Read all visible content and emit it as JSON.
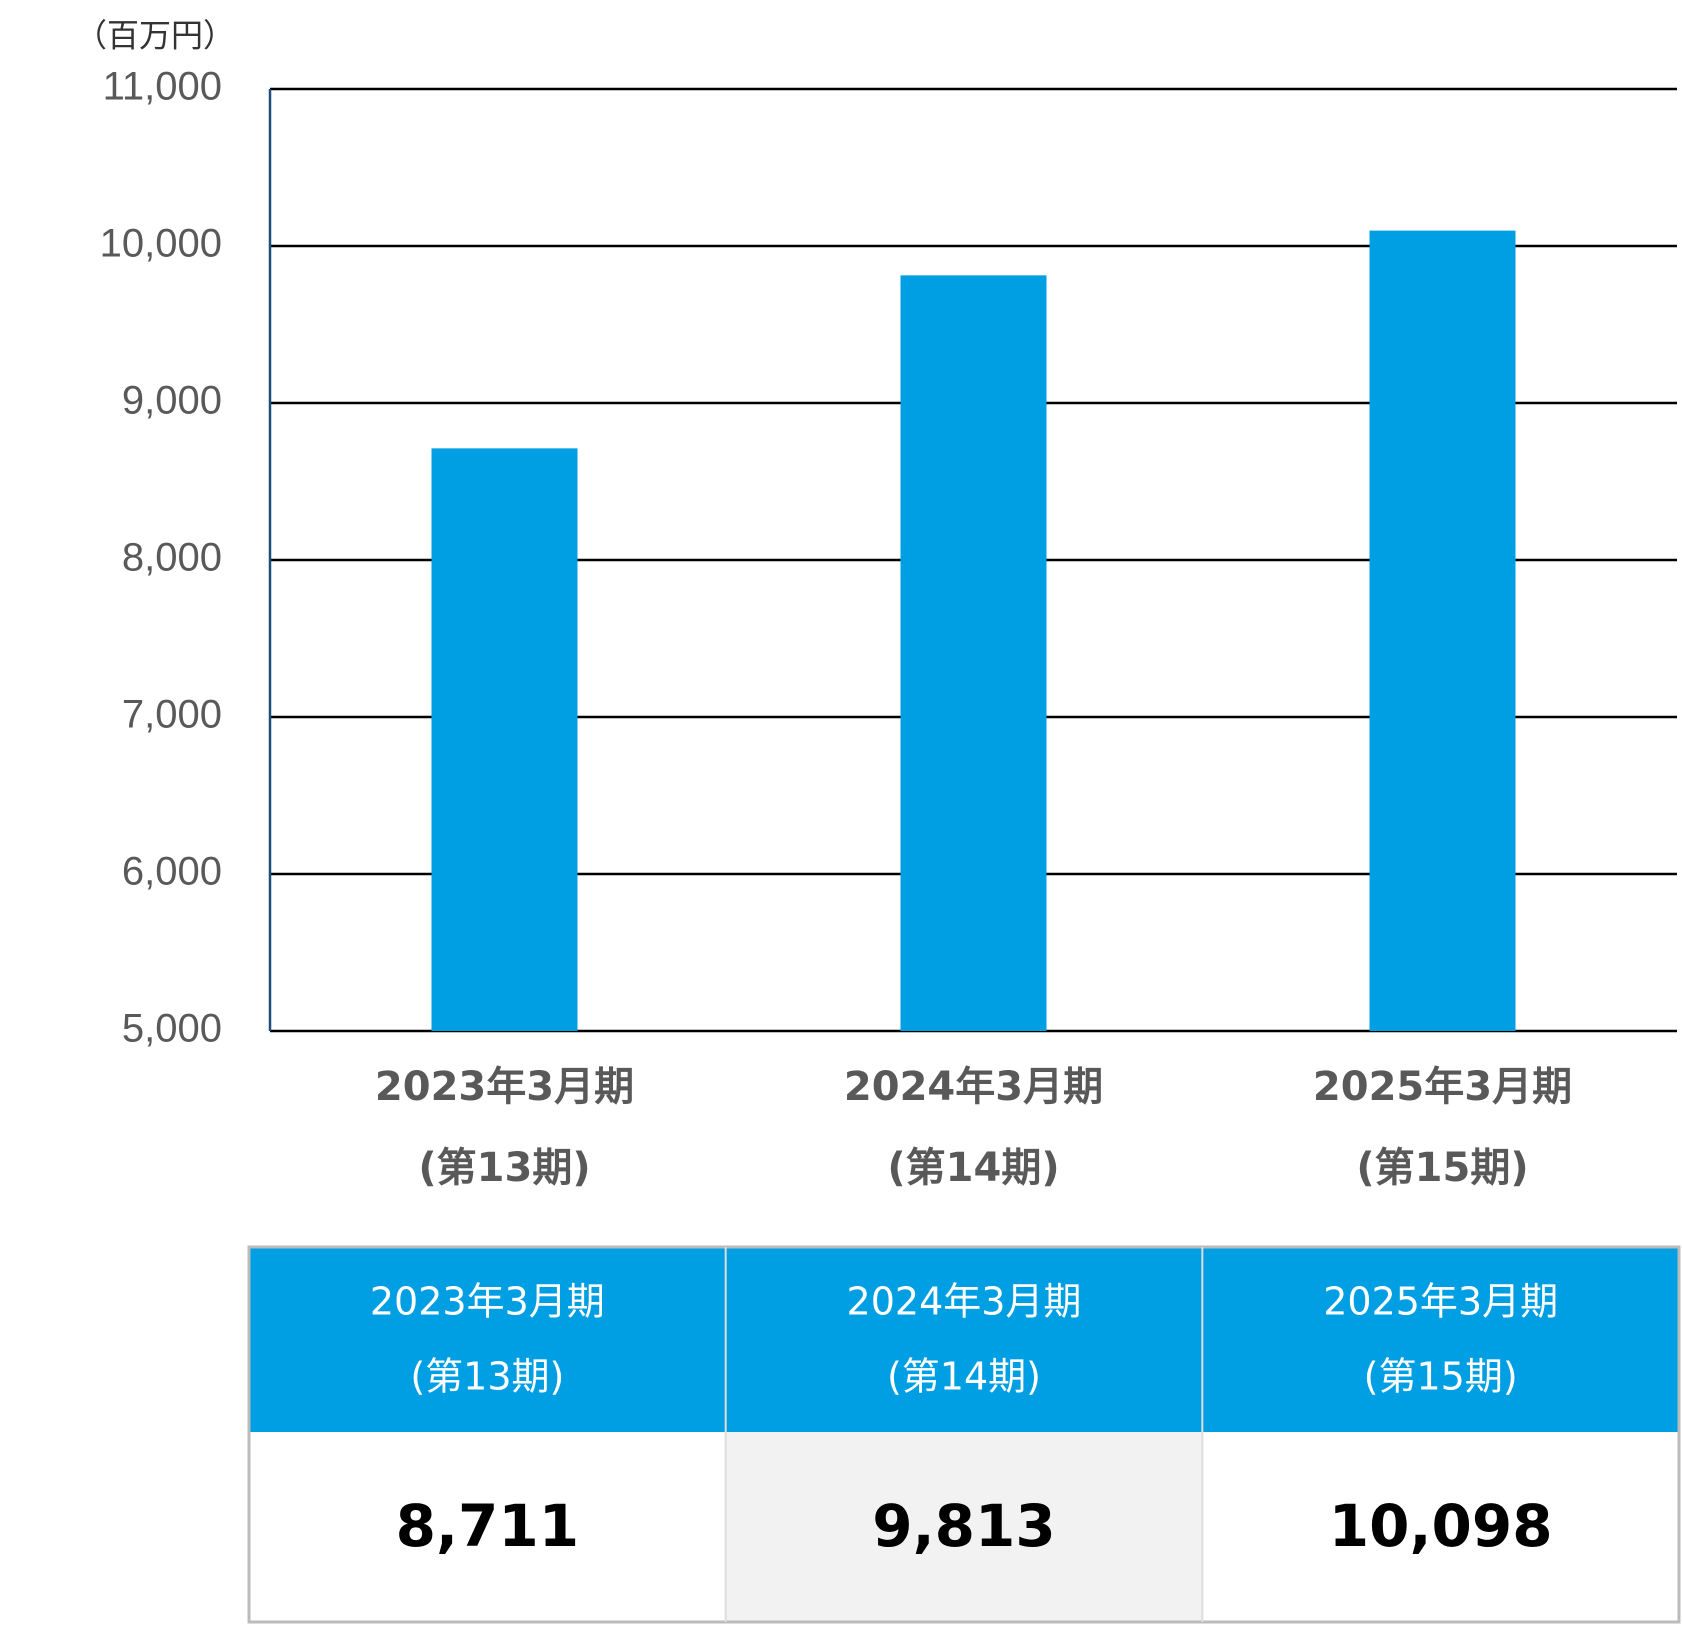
{
  "chart_data": {
    "type": "bar",
    "y_label": "（百万円）",
    "categories": [
      [
        "2023年3月期",
        "(第13期)"
      ],
      [
        "2024年3月期",
        "(第14期)"
      ],
      [
        "2025年3月期",
        "(第15期)"
      ]
    ],
    "values": [
      8711,
      9813,
      10098
    ],
    "value_labels": [
      "8,711",
      "9,813",
      "10,098"
    ],
    "color": "#009fe3",
    "ylim": [
      5000,
      11000
    ],
    "yticks": [
      {
        "value": 5000,
        "label": "5,000"
      },
      {
        "value": 6000,
        "label": "6,000"
      },
      {
        "value": 7000,
        "label": "7,000"
      },
      {
        "value": 8000,
        "label": "8,000"
      },
      {
        "value": 9000,
        "label": "9,000"
      },
      {
        "value": 10000,
        "label": "10,000"
      },
      {
        "value": 11000,
        "label": "11,000"
      }
    ],
    "grid": true
  }
}
